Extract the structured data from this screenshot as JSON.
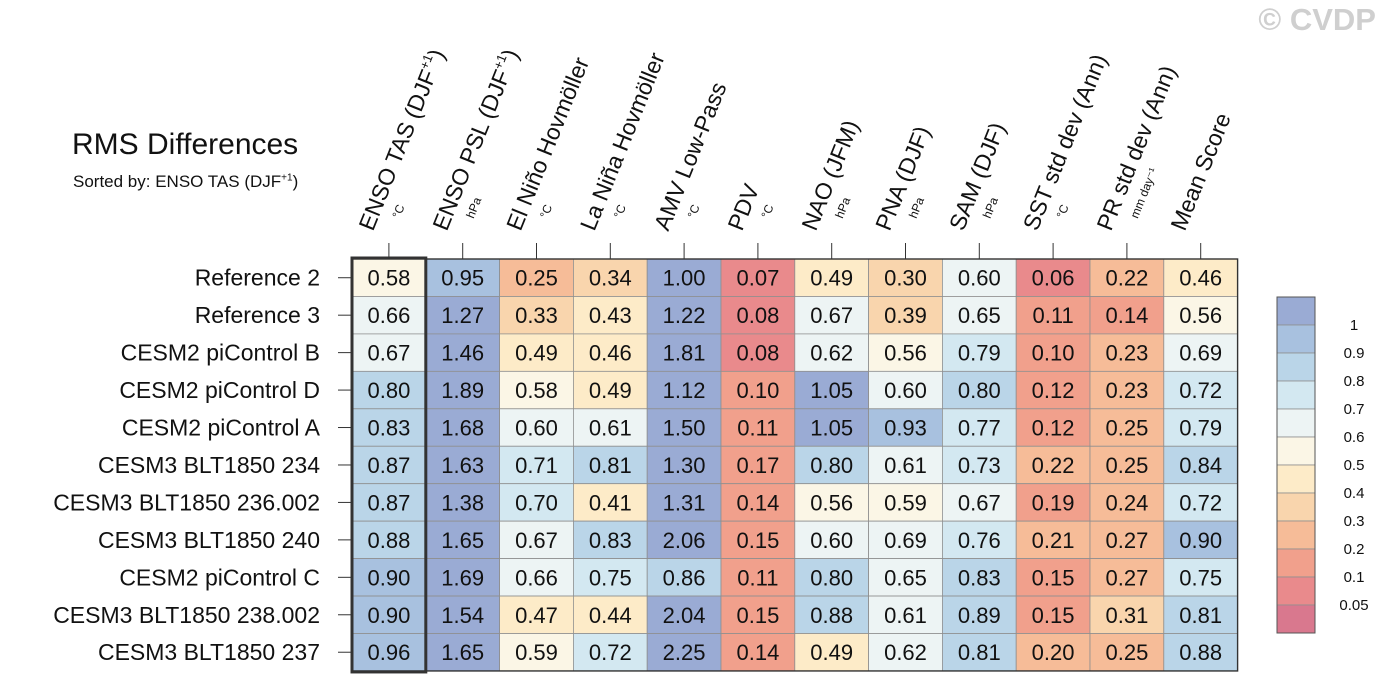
{
  "watermark": "© CVDP",
  "chart_data": {
    "type": "heatmap",
    "title": "RMS Differences",
    "subtitle_prefix": "Sorted by: ENSO TAS (DJF",
    "subtitle_sup": "+1",
    "subtitle_suffix": ")",
    "columns": [
      {
        "label": "ENSO TAS (DJF",
        "sup": "+1",
        "close": ")",
        "unit": "°C"
      },
      {
        "label": "ENSO PSL (DJF",
        "sup": "+1",
        "close": ")",
        "unit": "hPa"
      },
      {
        "label": "El Niño Hovmöller",
        "sup": "",
        "close": "",
        "unit": "°C"
      },
      {
        "label": "La Niña Hovmöller",
        "sup": "",
        "close": "",
        "unit": "°C"
      },
      {
        "label": "AMV Low-Pass",
        "sup": "",
        "close": "",
        "unit": "°C"
      },
      {
        "label": "PDV",
        "sup": "",
        "close": "",
        "unit": "°C"
      },
      {
        "label": "NAO (JFM)",
        "sup": "",
        "close": "",
        "unit": "hPa"
      },
      {
        "label": "PNA (DJF)",
        "sup": "",
        "close": "",
        "unit": "hPa"
      },
      {
        "label": "SAM (DJF)",
        "sup": "",
        "close": "",
        "unit": "hPa"
      },
      {
        "label": "SST std dev (Ann)",
        "sup": "",
        "close": "",
        "unit": "°C"
      },
      {
        "label": "PR std dev (Ann)",
        "sup": "",
        "close": "",
        "unit": "mm day⁻¹"
      },
      {
        "label": "Mean Score",
        "sup": "",
        "close": "",
        "unit": ""
      }
    ],
    "rows": [
      {
        "name": "Reference 2",
        "values": [
          "0.58",
          "0.95",
          "0.25",
          "0.34",
          "1.00",
          "0.07",
          "0.49",
          "0.30",
          "0.60",
          "0.06",
          "0.22",
          "0.46"
        ]
      },
      {
        "name": "Reference 3",
        "values": [
          "0.66",
          "1.27",
          "0.33",
          "0.43",
          "1.22",
          "0.08",
          "0.67",
          "0.39",
          "0.65",
          "0.11",
          "0.14",
          "0.56"
        ]
      },
      {
        "name": "CESM2 piControl B",
        "values": [
          "0.67",
          "1.46",
          "0.49",
          "0.46",
          "1.81",
          "0.08",
          "0.62",
          "0.56",
          "0.79",
          "0.10",
          "0.23",
          "0.69"
        ]
      },
      {
        "name": "CESM2 piControl D",
        "values": [
          "0.80",
          "1.89",
          "0.58",
          "0.49",
          "1.12",
          "0.10",
          "1.05",
          "0.60",
          "0.80",
          "0.12",
          "0.23",
          "0.72"
        ]
      },
      {
        "name": "CESM2 piControl A",
        "values": [
          "0.83",
          "1.68",
          "0.60",
          "0.61",
          "1.50",
          "0.11",
          "1.05",
          "0.93",
          "0.77",
          "0.12",
          "0.25",
          "0.79"
        ]
      },
      {
        "name": "CESM3 BLT1850 234",
        "values": [
          "0.87",
          "1.63",
          "0.71",
          "0.81",
          "1.30",
          "0.17",
          "0.80",
          "0.61",
          "0.73",
          "0.22",
          "0.25",
          "0.84"
        ]
      },
      {
        "name": "CESM3 BLT1850 236.002",
        "values": [
          "0.87",
          "1.38",
          "0.70",
          "0.41",
          "1.31",
          "0.14",
          "0.56",
          "0.59",
          "0.67",
          "0.19",
          "0.24",
          "0.72"
        ]
      },
      {
        "name": "CESM3 BLT1850 240",
        "values": [
          "0.88",
          "1.65",
          "0.67",
          "0.83",
          "2.06",
          "0.15",
          "0.60",
          "0.69",
          "0.76",
          "0.21",
          "0.27",
          "0.90"
        ]
      },
      {
        "name": "CESM2 piControl C",
        "values": [
          "0.90",
          "1.69",
          "0.66",
          "0.75",
          "0.86",
          "0.11",
          "0.80",
          "0.65",
          "0.83",
          "0.15",
          "0.27",
          "0.75"
        ]
      },
      {
        "name": "CESM3 BLT1850 238.002",
        "values": [
          "0.90",
          "1.54",
          "0.47",
          "0.44",
          "2.04",
          "0.15",
          "0.88",
          "0.61",
          "0.89",
          "0.15",
          "0.31",
          "0.81"
        ]
      },
      {
        "name": "CESM3 BLT1850 237",
        "values": [
          "0.96",
          "1.65",
          "0.59",
          "0.72",
          "2.25",
          "0.14",
          "0.49",
          "0.62",
          "0.81",
          "0.20",
          "0.25",
          "0.88"
        ]
      }
    ],
    "sorted_column": 0,
    "colorbar": {
      "labels": [
        "1",
        "0.9",
        "0.8",
        "0.7",
        "0.6",
        "0.5",
        "0.4",
        "0.3",
        "0.2",
        "0.1",
        "0.05"
      ],
      "colors": [
        "#9aabd4",
        "#a8c1df",
        "#bad5e8",
        "#d3e8f1",
        "#edf4f4",
        "#fbf6e6",
        "#fdebc8",
        "#f9d5ad",
        "#f6bc98",
        "#f1a08c",
        "#e98a8c",
        "#d9788e"
      ]
    }
  }
}
